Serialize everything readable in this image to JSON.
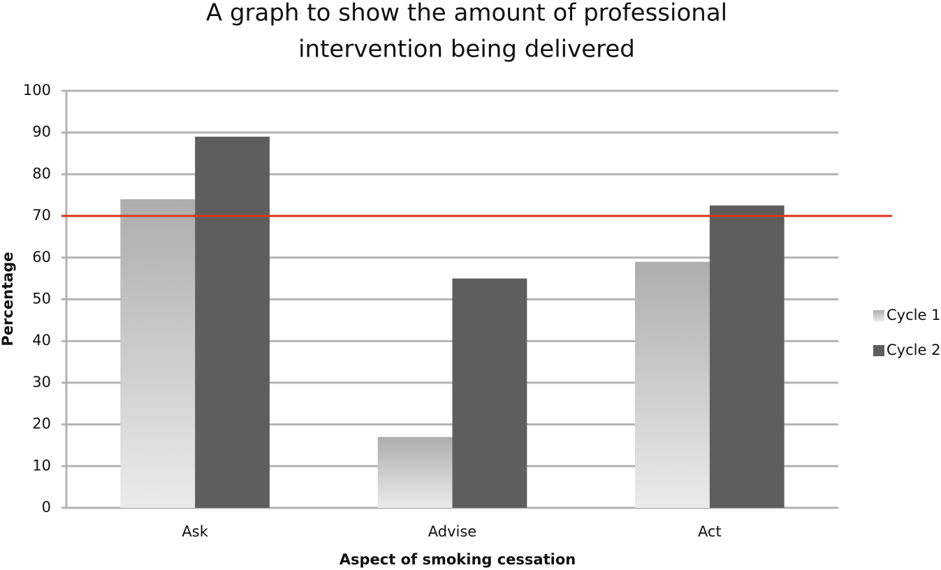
{
  "chart_data": {
    "type": "bar",
    "title": [
      "A graph to show the amount of professional",
      "intervention being delivered"
    ],
    "x_label": "Aspect of smoking cessation",
    "y_label": "Percentage",
    "categories": [
      "Ask",
      "Advise",
      "Act"
    ],
    "series": [
      {
        "name": "Cycle 1",
        "color": "#adadad",
        "values": [
          74,
          17,
          59
        ]
      },
      {
        "name": "Cycle 2",
        "color": "#5e5e5e",
        "values": [
          89,
          55,
          72.5
        ]
      }
    ],
    "reference_line": {
      "value": 70,
      "color": "#e0341f"
    },
    "ylim": [
      0,
      100
    ],
    "yticks": [
      0,
      10,
      20,
      30,
      40,
      50,
      60,
      70,
      80,
      90,
      100
    ],
    "grid": true,
    "legend": "right"
  }
}
